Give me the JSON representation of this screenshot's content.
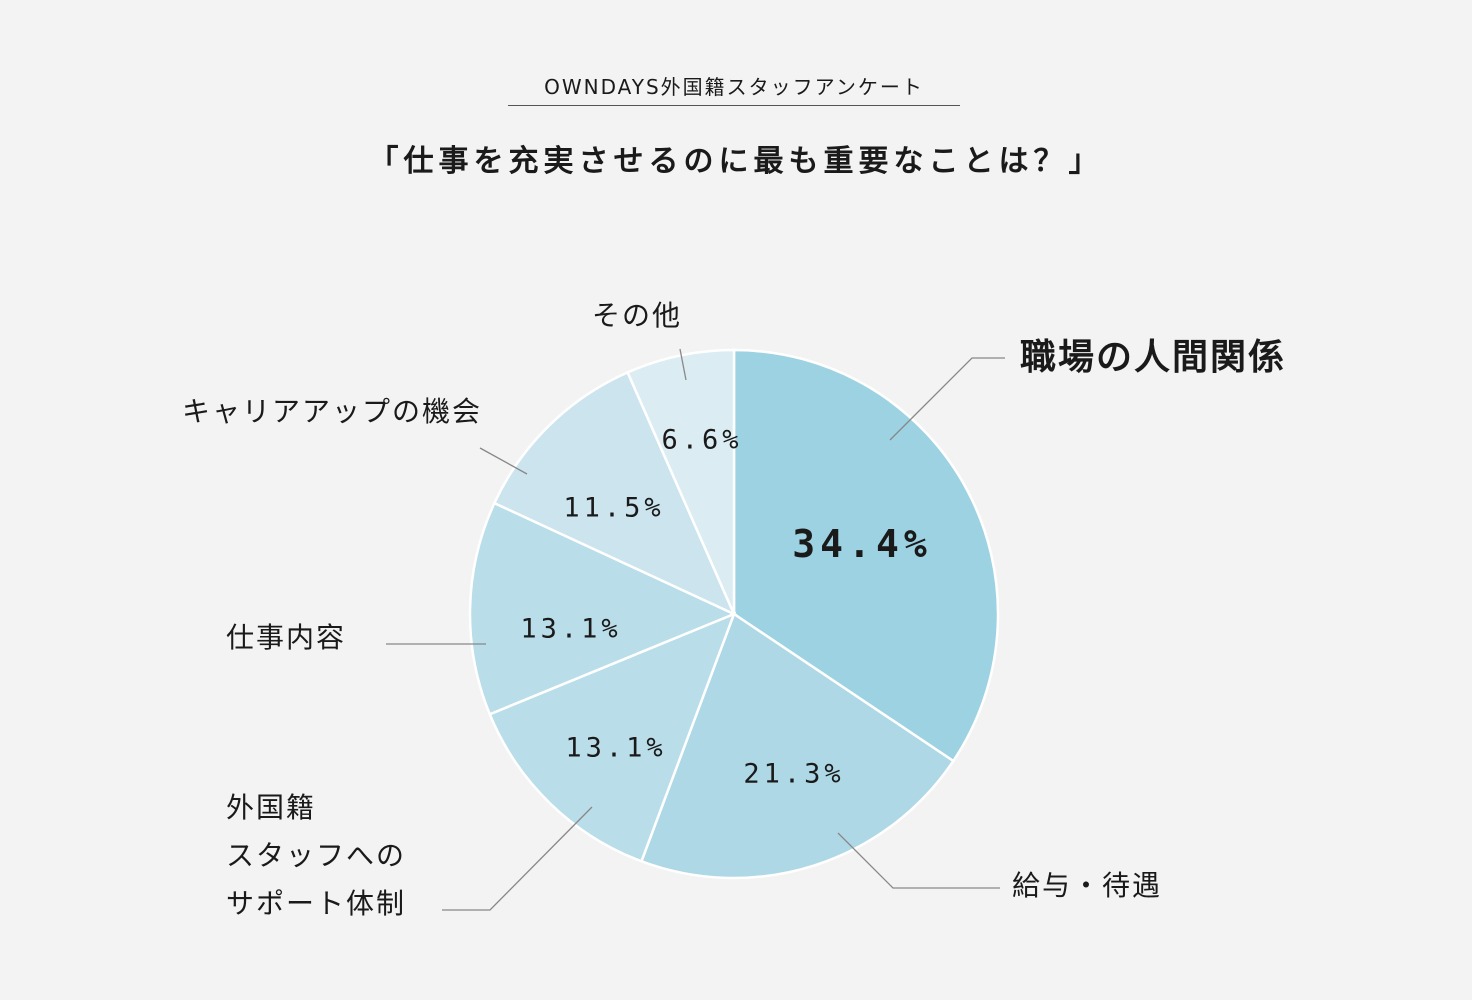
{
  "header": {
    "subtitle": "OWNDAYS外国籍スタッフアンケート",
    "title": "「仕事を充実させるのに最も重要なことは？」"
  },
  "colors": {
    "background": "#f3f3f3",
    "slice_1": "#9dd2e2",
    "slice_2": "#aed8e6",
    "slice_3": "#b9dde9",
    "slice_4": "#b9dde9",
    "slice_5": "#cbe4ee",
    "slice_6": "#dbecf2",
    "leader_line": "#888888"
  },
  "chart_data": {
    "type": "pie",
    "start_angle": "12 o'clock",
    "direction": "clockwise",
    "slices": [
      {
        "label": "職場の人間関係",
        "value": 34.4,
        "display": "34.4%",
        "emphasized": true
      },
      {
        "label": "給与・待遇",
        "value": 21.3,
        "display": "21.3%"
      },
      {
        "label": "外国籍\nスタッフへの\nサポート体制",
        "label_lines": [
          "外国籍",
          "スタッフへの",
          "サポート体制"
        ],
        "value": 13.1,
        "display": "13.1%"
      },
      {
        "label": "仕事内容",
        "value": 13.1,
        "display": "13.1%"
      },
      {
        "label": "キャリアアップの機会",
        "value": 11.5,
        "display": "11.5%"
      },
      {
        "label": "その他",
        "value": 6.6,
        "display": "6.6%"
      }
    ]
  }
}
